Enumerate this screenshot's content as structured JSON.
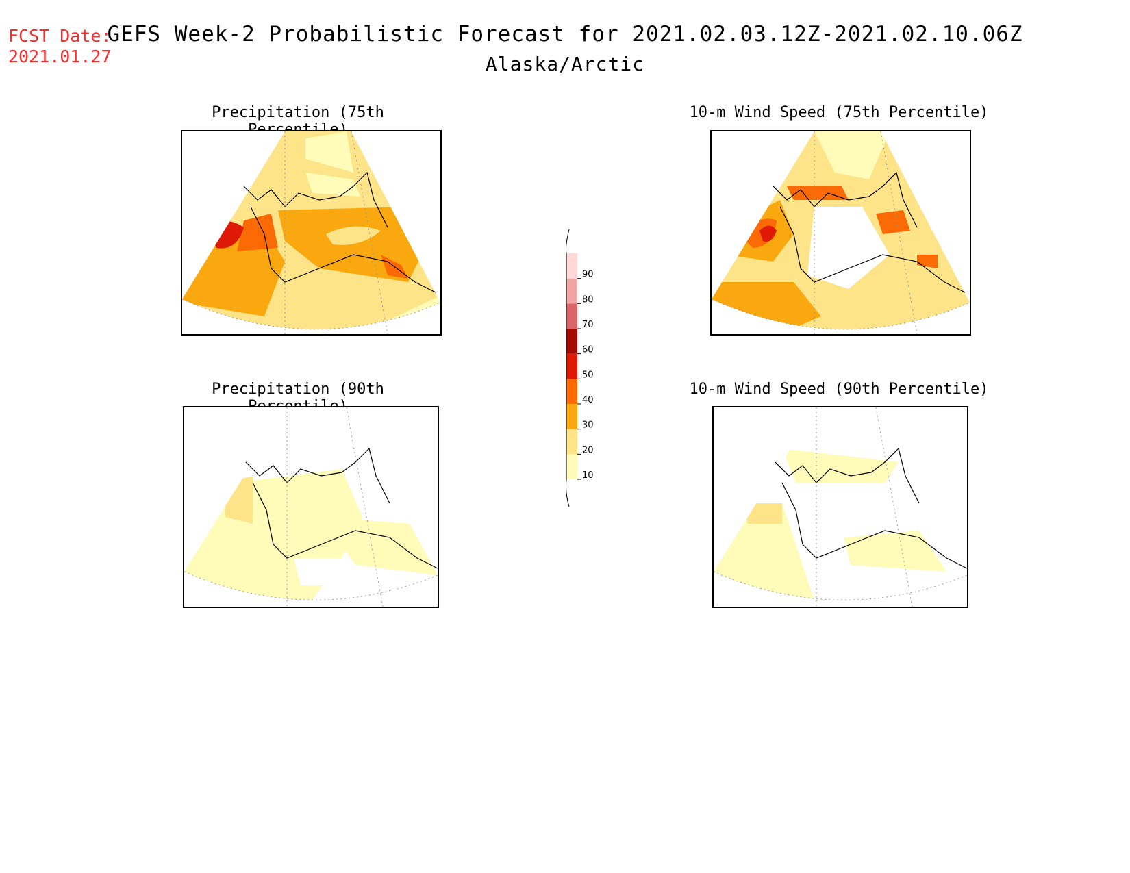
{
  "header": {
    "fcst_label": "FCST Date:",
    "fcst_date": "2021.01.27",
    "title": "GEFS Week-2 Probabilistic Forecast for 2021.02.03.12Z-2021.02.10.06Z",
    "subtitle": "Alaska/Arctic"
  },
  "panels": [
    {
      "id": "precip75",
      "title": "Precipitation (75th Percentile)"
    },
    {
      "id": "wind75",
      "title": "10-m Wind Speed (75th Percentile)"
    },
    {
      "id": "precip90",
      "title": "Precipitation (90th Percentile)"
    },
    {
      "id": "wind90",
      "title": "10-m Wind Speed (90th Percentile)"
    }
  ],
  "legend": {
    "levels": [
      "10",
      "20",
      "30",
      "40",
      "50",
      "60",
      "70",
      "80",
      "90"
    ],
    "colors": [
      "#fffbb8",
      "#fde488",
      "#f9a80f",
      "#fb6a04",
      "#de1a06",
      "#a20c05",
      "#d9676a",
      "#f0a5a5",
      "#fdd9d9"
    ]
  }
}
